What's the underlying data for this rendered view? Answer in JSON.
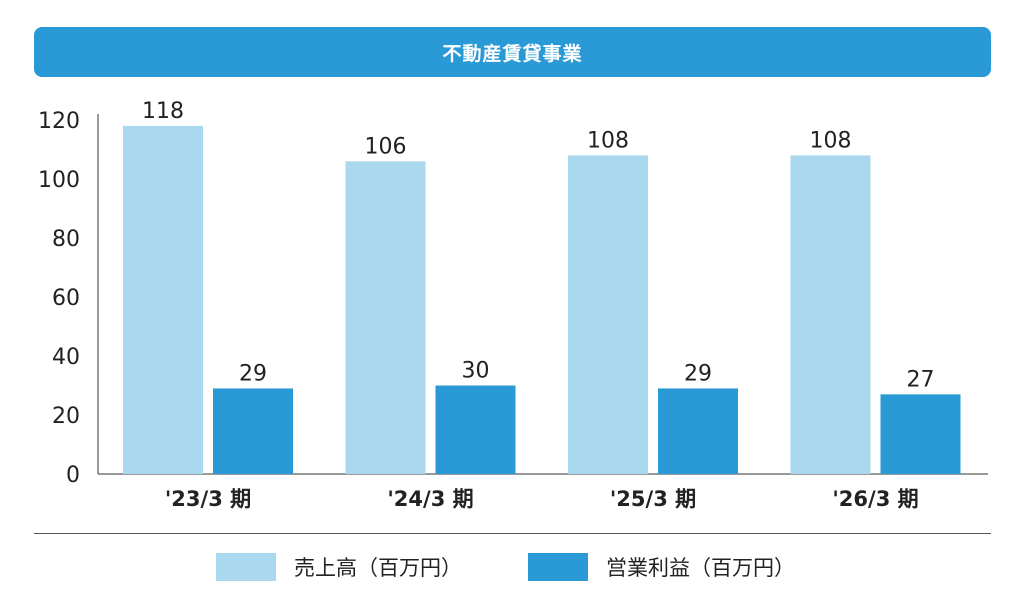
{
  "banner": {
    "title": "不動産賃貸事業",
    "color": "#2a9ad6"
  },
  "legend": {
    "items": [
      {
        "label": "売上高（百万円）",
        "color": "#aad8ef"
      },
      {
        "label": "営業利益（百万円）",
        "color": "#2a9ad6"
      }
    ]
  },
  "chart_data": {
    "type": "bar",
    "title": "不動産賃貸事業",
    "categories": [
      "'23/3 期",
      "'24/3 期",
      "'25/3 期",
      "'26/3 期"
    ],
    "series": [
      {
        "name": "売上高（百万円）",
        "values": [
          118,
          106,
          108,
          108
        ],
        "color": "#aad8ef"
      },
      {
        "name": "営業利益（百万円）",
        "values": [
          29,
          30,
          29,
          27
        ],
        "color": "#2a9ad6"
      }
    ],
    "ylim": [
      0,
      120
    ],
    "yticks": [
      0,
      20,
      40,
      60,
      80,
      100,
      120
    ],
    "xlabel": "",
    "ylabel": "",
    "grid": false,
    "legend_position": "bottom"
  }
}
